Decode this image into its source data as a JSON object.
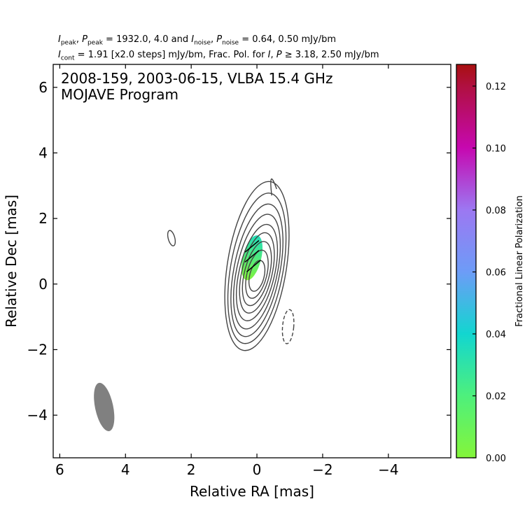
{
  "header": {
    "line1": {
      "i_sym": "I",
      "i_sub": "peak",
      "p_sym": "P",
      "p_sub": "peak",
      "eq1": " = 1932.0, 4.0 and ",
      "i2_sym": "I",
      "i2_sub": "noise",
      "p2_sym": "P",
      "p2_sub": "noise",
      "eq2": " = 0.64, 0.50 mJy/bm"
    },
    "line2": {
      "i_sym": "I",
      "i_sub": "cont",
      "text_a": " = 1.91 [x2.0 steps] mJy/bm, Frac. Pol. for ",
      "i2_sym": "I",
      "p_sym": "P",
      "text_b": " ≥  3.18, 2.50 mJy/bm"
    }
  },
  "chart_data": {
    "type": "contour",
    "title_lines": [
      "2008-159, 2003-06-15, VLBA 15.4 GHz",
      "MOJAVE Program"
    ],
    "xlabel": "Relative RA [mas]",
    "ylabel": "Relative Dec [mas]",
    "xlim": [
      6.2,
      -5.9
    ],
    "ylim": [
      -5.3,
      6.7
    ],
    "xticks": [
      6,
      4,
      2,
      0,
      -2,
      -4
    ],
    "yticks": [
      -4,
      -2,
      0,
      2,
      4,
      6
    ],
    "contour_color": "#454545",
    "core": {
      "ra": 0.0,
      "dec": 0.0
    },
    "contours": [
      {
        "a": 0.22,
        "b": 0.48,
        "dec_offset": 0.25,
        "pa_deg": 14,
        "style": "solid"
      },
      {
        "a": 0.3,
        "b": 0.75,
        "dec_offset": 0.3,
        "pa_deg": 14,
        "style": "solid"
      },
      {
        "a": 0.38,
        "b": 1.0,
        "dec_offset": 0.32,
        "pa_deg": 14,
        "style": "solid"
      },
      {
        "a": 0.46,
        "b": 1.25,
        "dec_offset": 0.34,
        "pa_deg": 13,
        "style": "solid"
      },
      {
        "a": 0.54,
        "b": 1.5,
        "dec_offset": 0.35,
        "pa_deg": 13,
        "style": "solid"
      },
      {
        "a": 0.62,
        "b": 1.78,
        "dec_offset": 0.38,
        "pa_deg": 12,
        "style": "solid"
      },
      {
        "a": 0.7,
        "b": 2.05,
        "dec_offset": 0.42,
        "pa_deg": 11,
        "style": "solid"
      },
      {
        "a": 0.8,
        "b": 2.32,
        "dec_offset": 0.48,
        "pa_deg": 10,
        "style": "solid"
      },
      {
        "a": 0.9,
        "b": 2.6,
        "dec_offset": 0.55,
        "pa_deg": 9,
        "style": "solid"
      }
    ],
    "extra_contours": [
      {
        "ra": 2.6,
        "dec": 1.4,
        "a": 0.1,
        "b": 0.24,
        "pa_deg": -15,
        "style": "solid"
      },
      {
        "ra": -0.95,
        "dec": -1.3,
        "a": 0.17,
        "b": 0.52,
        "pa_deg": 5,
        "style": "dashed"
      }
    ],
    "jet_extension": {
      "from_dec": 2.9,
      "to_dec": 3.5,
      "ra": -0.4
    },
    "beam": {
      "ra": 4.65,
      "dec": -3.75,
      "major_mas": 1.5,
      "minor_mas": 0.55,
      "pa_deg": -12,
      "color": "#808080"
    },
    "polarization": {
      "color_region": {
        "ra": 0.15,
        "dec": 0.8,
        "a": 0.28,
        "b": 0.7,
        "pa_deg": 14
      },
      "frac_pol_top": 0.035,
      "frac_pol_bottom": 0.0,
      "evpa_ticks": [
        {
          "ra": 0.15,
          "dec": 1.15,
          "len_mas": 0.55,
          "angle_deg": 40
        },
        {
          "ra": 0.15,
          "dec": 0.85,
          "len_mas": 0.55,
          "angle_deg": 40
        },
        {
          "ra": 0.1,
          "dec": 0.55,
          "len_mas": 0.55,
          "angle_deg": 40
        }
      ]
    },
    "colorbar": {
      "label": "Fractional Linear Polarization",
      "vmin": 0.0,
      "vmax": 0.127,
      "ticks": [
        0.0,
        0.02,
        0.04,
        0.06,
        0.08,
        0.1,
        0.12
      ],
      "tick_labels": [
        "0.00",
        "0.02",
        "0.04",
        "0.06",
        "0.08",
        "0.10",
        "0.12"
      ],
      "stops": [
        {
          "v": 0.0,
          "color": "#84f53a"
        },
        {
          "v": 0.02,
          "color": "#4ef07c"
        },
        {
          "v": 0.04,
          "color": "#12d6d0"
        },
        {
          "v": 0.06,
          "color": "#6d9cf7"
        },
        {
          "v": 0.08,
          "color": "#9c78f2"
        },
        {
          "v": 0.1,
          "color": "#c608b0"
        },
        {
          "v": 0.12,
          "color": "#b01040"
        },
        {
          "v": 0.127,
          "color": "#a81010"
        }
      ]
    }
  }
}
